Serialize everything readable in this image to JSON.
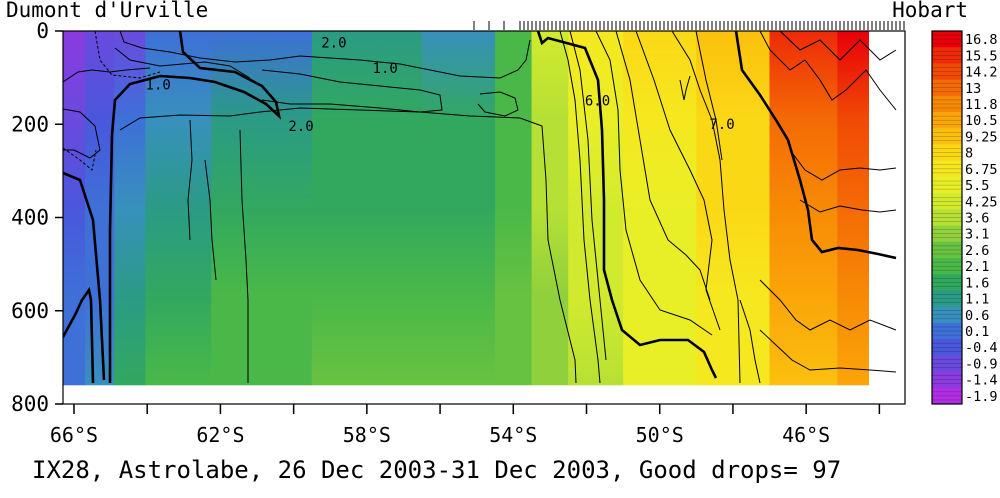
{
  "chart_data": {
    "type": "heatmap",
    "variable": "temperature",
    "station_left": "Dumont d'Urville",
    "station_right": "Hobart",
    "caption": "IX28, Astrolabe, 26 Dec 2003-31 Dec 2003, Good drops= 97",
    "x_axis": {
      "lim": [
        -66.3,
        -43.3
      ],
      "ticks": [
        -66,
        -62,
        -58,
        -54,
        -50,
        -46
      ],
      "tick_labels": [
        "66°S",
        "62°S",
        "58°S",
        "54°S",
        "50°S",
        "46°S"
      ],
      "minor_ticks": [
        -64,
        -60,
        -56,
        -52,
        -48,
        -44
      ]
    },
    "y_axis": {
      "lim": [
        0,
        800
      ],
      "inverted": true,
      "ticks": [
        0,
        200,
        400,
        600,
        800
      ],
      "tick_labels": [
        "0",
        "200",
        "400",
        "600",
        "800"
      ],
      "data_max_depth": 760
    },
    "colorbar": {
      "levels": [
        "16.8",
        "15.5",
        "14.2",
        "13",
        "11.8",
        "10.5",
        "9.25",
        "8",
        "6.75",
        "5.5",
        "4.25",
        "3.6",
        "3.1",
        "2.6",
        "2.1",
        "1.6",
        "1.1",
        "0.6",
        "0.1",
        "-0.4",
        "-0.9",
        "-1.4",
        "-1.9"
      ],
      "colors": [
        "#e8000a",
        "#ee2a08",
        "#f14a05",
        "#f46a05",
        "#f78a05",
        "#faa509",
        "#fbc00e",
        "#fbd816",
        "#f5e81f",
        "#e9ef27",
        "#d2ea2e",
        "#b6e035",
        "#8fd03c",
        "#68c242",
        "#4ab848",
        "#32a85f",
        "#2b9b85",
        "#3890bd",
        "#3e70d8",
        "#4a57dc",
        "#6a4ade",
        "#8a3be0",
        "#b12ee4"
      ]
    },
    "contour_labels": [
      {
        "value": "2.0",
        "lon": -58.9,
        "depth": 35
      },
      {
        "value": "1.0",
        "lon": -57.5,
        "depth": 90
      },
      {
        "value": "1.0",
        "lon": -63.7,
        "depth": 125
      },
      {
        "value": "2.0",
        "lon": -59.8,
        "depth": 215
      },
      {
        "value": "6.0",
        "lon": -51.7,
        "depth": 160
      },
      {
        "value": "7.0",
        "lon": -48.3,
        "depth": 210
      }
    ],
    "temperature_section": {
      "stops": [
        {
          "lon": -66.2,
          "surface": -1.6,
          "deep": 0.0
        },
        {
          "lon": -65.2,
          "surface": -1.3,
          "deep": 0.2
        },
        {
          "lon": -64.6,
          "surface": -1.0,
          "deep": 1.2
        },
        {
          "lon": -63.5,
          "surface": -0.3,
          "deep": 1.8
        },
        {
          "lon": -61.0,
          "surface": 0.0,
          "deep": 2.0
        },
        {
          "lon": -58.0,
          "surface": 0.6,
          "deep": 2.1
        },
        {
          "lon": -55.0,
          "surface": 0.5,
          "deep": 2.2
        },
        {
          "lon": -54.0,
          "surface": 1.6,
          "deep": 2.3
        },
        {
          "lon": -53.0,
          "surface": 4.0,
          "deep": 2.6
        },
        {
          "lon": -52.0,
          "surface": 5.5,
          "deep": 3.3
        },
        {
          "lon": -50.0,
          "surface": 7.0,
          "deep": 4.4
        },
        {
          "lon": -48.0,
          "surface": 9.0,
          "deep": 6.2
        },
        {
          "lon": -46.0,
          "surface": 14.2,
          "deep": 8.6
        },
        {
          "lon": -44.3,
          "surface": 16.0,
          "deep": 10.0
        }
      ]
    }
  }
}
